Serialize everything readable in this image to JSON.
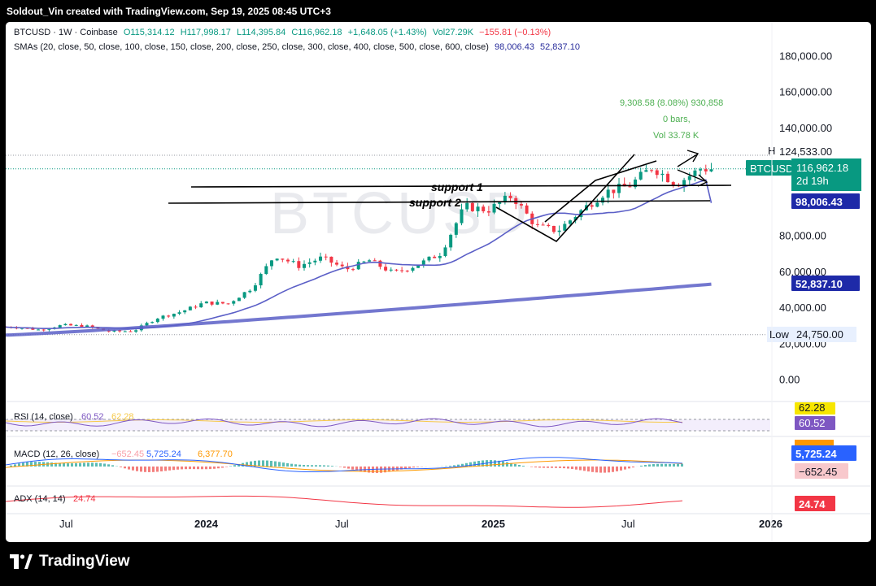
{
  "attribution": "Soldout_Vin created with TradingView.com, Sep 19, 2025 08:45 UTC+3",
  "symbol_line": {
    "symbol": "BTCUSD · 1W · Coinbase",
    "open": "O115,314.12",
    "high": "H117,998.17",
    "low": "L114,395.84",
    "close": "C116,962.18",
    "change": "+1,648.05 (+1.43%)",
    "vol": "Vol27.29K",
    "vol_change": "−155.81 (−0.13%)"
  },
  "sma_line": {
    "label": "SMAs (20, close, 50, close, 100, close, 150, close, 200, close, 250, close, 300, close, 400, close, 500, close, 600, close)",
    "v1": "98,006.43",
    "v2": "52,837.10"
  },
  "watermark": "BTCUSD",
  "measure": {
    "line1": "9,308.58 (8.08%) 930,858",
    "line2": "0 bars,",
    "line3": "Vol 33.78 K"
  },
  "annotations": {
    "support1": "support 1",
    "support2": "support 2"
  },
  "price_axis": {
    "ticks": [
      "180,000.00",
      "160,000.00",
      "140,000.00",
      "80,000.00",
      "60,000.00",
      "40,000.00",
      "20,000.00",
      "0.00"
    ],
    "tick_values": [
      180000,
      160000,
      140000,
      80000,
      60000,
      40000,
      20000,
      0
    ],
    "high_label": "High",
    "high_value": "124,533.00",
    "last_symbol": "BTCUSD",
    "last_value": "116,962.18",
    "countdown": "2d 19h",
    "sma_fast_value": "98,006.43",
    "sma_slow_value": "52,837.10",
    "low_label": "Low",
    "low_value": "24,750.00"
  },
  "rsi": {
    "label": "RSI (14, close)",
    "value": "60.52",
    "ma": "62.28",
    "badge_ma": "62.28",
    "badge_value": "60.52"
  },
  "macd": {
    "label": "MACD (12, 26, close)",
    "hist": "−652.45",
    "macd": "5,725.24",
    "signal": "6,377.70",
    "badge_macd": "5,725.24",
    "badge_hist": "−652.45"
  },
  "adx": {
    "label": "ADX (14, 14)",
    "value": "24.74",
    "badge": "24.74"
  },
  "time_axis": [
    "Jul",
    "2024",
    "Jul",
    "2025",
    "Jul",
    "2026"
  ],
  "brand": "TradingView",
  "colors": {
    "up": "#089981",
    "down": "#f23645",
    "sma_fast": "#5b5fc7",
    "sma_slow": "#5b5fc7",
    "last_price": "#089981",
    "rsi_badge_ma": "#f7e600",
    "rsi_badge_value": "#7e57c2",
    "macd_blue": "#2962ff",
    "macd_hist_badge": "#f8c8cc",
    "adx": "#f23645"
  },
  "chart_data": {
    "type": "candlestick",
    "title": "BTCUSD · 1W · Coinbase",
    "ylim": [
      0,
      190000
    ],
    "x_ticks": [
      "Jul",
      "2024",
      "Jul",
      "2025",
      "Jul",
      "2026"
    ],
    "close_path": [
      [
        "2023-04",
        29000
      ],
      [
        "2023-05",
        27500
      ],
      [
        "2023-06",
        30000
      ],
      [
        "2023-07",
        29500
      ],
      [
        "2023-08",
        26500
      ],
      [
        "2023-09",
        26800
      ],
      [
        "2023-10",
        34000
      ],
      [
        "2023-11",
        37500
      ],
      [
        "2023-12",
        42500
      ],
      [
        "2024-01",
        42000
      ],
      [
        "2024-02",
        51000
      ],
      [
        "2024-03",
        69000
      ],
      [
        "2024-04",
        63000
      ],
      [
        "2024-05",
        67500
      ],
      [
        "2024-06",
        61000
      ],
      [
        "2024-07",
        66000
      ],
      [
        "2024-08",
        59000
      ],
      [
        "2024-09",
        63500
      ],
      [
        "2024-10",
        70000
      ],
      [
        "2024-11",
        96000
      ],
      [
        "2024-12",
        94000
      ],
      [
        "2025-01",
        102000
      ],
      [
        "2025-02",
        85000
      ],
      [
        "2025-03",
        82500
      ],
      [
        "2025-04",
        94000
      ],
      [
        "2025-05",
        104000
      ],
      [
        "2025-06",
        107500
      ],
      [
        "2025-07",
        118000
      ],
      [
        "2025-08",
        108500
      ],
      [
        "2025-09",
        116962.18
      ]
    ],
    "high": 124533.0,
    "low": 24750.0,
    "last": 116962.18,
    "sma_fast_last": 98006.43,
    "sma_slow_last": 52837.1,
    "support_levels": [
      {
        "name": "support 1",
        "value": 103500
      },
      {
        "name": "support 2",
        "value": 99000
      }
    ],
    "rsi": {
      "value": 60.52,
      "ma": 62.28
    },
    "macd": {
      "macd": 5725.24,
      "signal": 6377.7,
      "histogram": -652.45
    },
    "adx": 24.74
  }
}
